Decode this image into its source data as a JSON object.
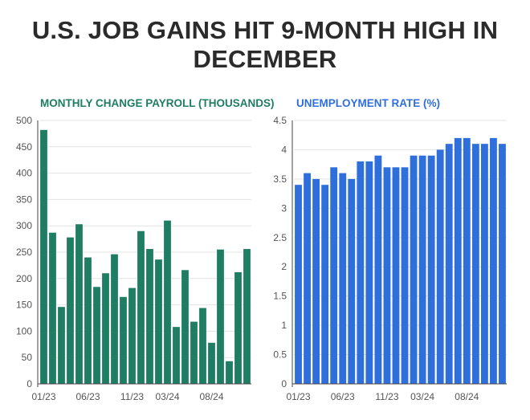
{
  "title": "U.S. JOB GAINS HIT 9-MONTH HIGH IN DECEMBER",
  "colors": {
    "payroll": "#1f7d64",
    "unemployment": "#2f6fdc",
    "grid": "#e3e3e3",
    "axis": "#444444",
    "title": "#2b2b2b"
  },
  "chart_data": [
    {
      "type": "bar",
      "title": "MONTHLY CHANGE PAYROLL (THOUSANDS)",
      "xlabel": "",
      "ylabel": "",
      "categories": [
        "01/23",
        "02/23",
        "03/23",
        "04/23",
        "05/23",
        "06/23",
        "07/23",
        "08/23",
        "09/23",
        "10/23",
        "11/23",
        "12/23",
        "01/24",
        "02/24",
        "03/24",
        "04/24",
        "05/24",
        "06/24",
        "07/24",
        "08/24",
        "09/24",
        "10/24",
        "11/24",
        "12/24"
      ],
      "values": [
        482,
        287,
        146,
        278,
        303,
        240,
        184,
        210,
        246,
        165,
        182,
        290,
        256,
        236,
        310,
        108,
        216,
        118,
        144,
        78,
        255,
        43,
        212,
        256
      ],
      "ylim": [
        0,
        500
      ],
      "yticks": [
        0,
        50,
        100,
        150,
        200,
        250,
        300,
        350,
        400,
        450,
        500
      ],
      "xtick_labels": [
        "01/23",
        "06/23",
        "11/23",
        "03/24",
        "08/24"
      ],
      "grid": true
    },
    {
      "type": "bar",
      "title": "UNEMPLOYMENT RATE (%)",
      "xlabel": "",
      "ylabel": "",
      "categories": [
        "01/23",
        "02/23",
        "03/23",
        "04/23",
        "05/23",
        "06/23",
        "07/23",
        "08/23",
        "09/23",
        "10/23",
        "11/23",
        "12/23",
        "01/24",
        "02/24",
        "03/24",
        "04/24",
        "05/24",
        "06/24",
        "07/24",
        "08/24",
        "09/24",
        "10/24",
        "11/24",
        "12/24"
      ],
      "values": [
        3.4,
        3.6,
        3.5,
        3.4,
        3.7,
        3.6,
        3.5,
        3.8,
        3.8,
        3.9,
        3.7,
        3.7,
        3.7,
        3.9,
        3.9,
        3.9,
        4.0,
        4.1,
        4.2,
        4.2,
        4.1,
        4.1,
        4.2,
        4.1
      ],
      "ylim": [
        0,
        4.5
      ],
      "yticks": [
        0,
        0.5,
        1,
        1.5,
        2,
        2.5,
        3,
        3.5,
        4,
        4.5
      ],
      "xtick_labels": [
        "01/23",
        "06/23",
        "11/23",
        "03/24",
        "08/24"
      ],
      "grid": true
    }
  ]
}
